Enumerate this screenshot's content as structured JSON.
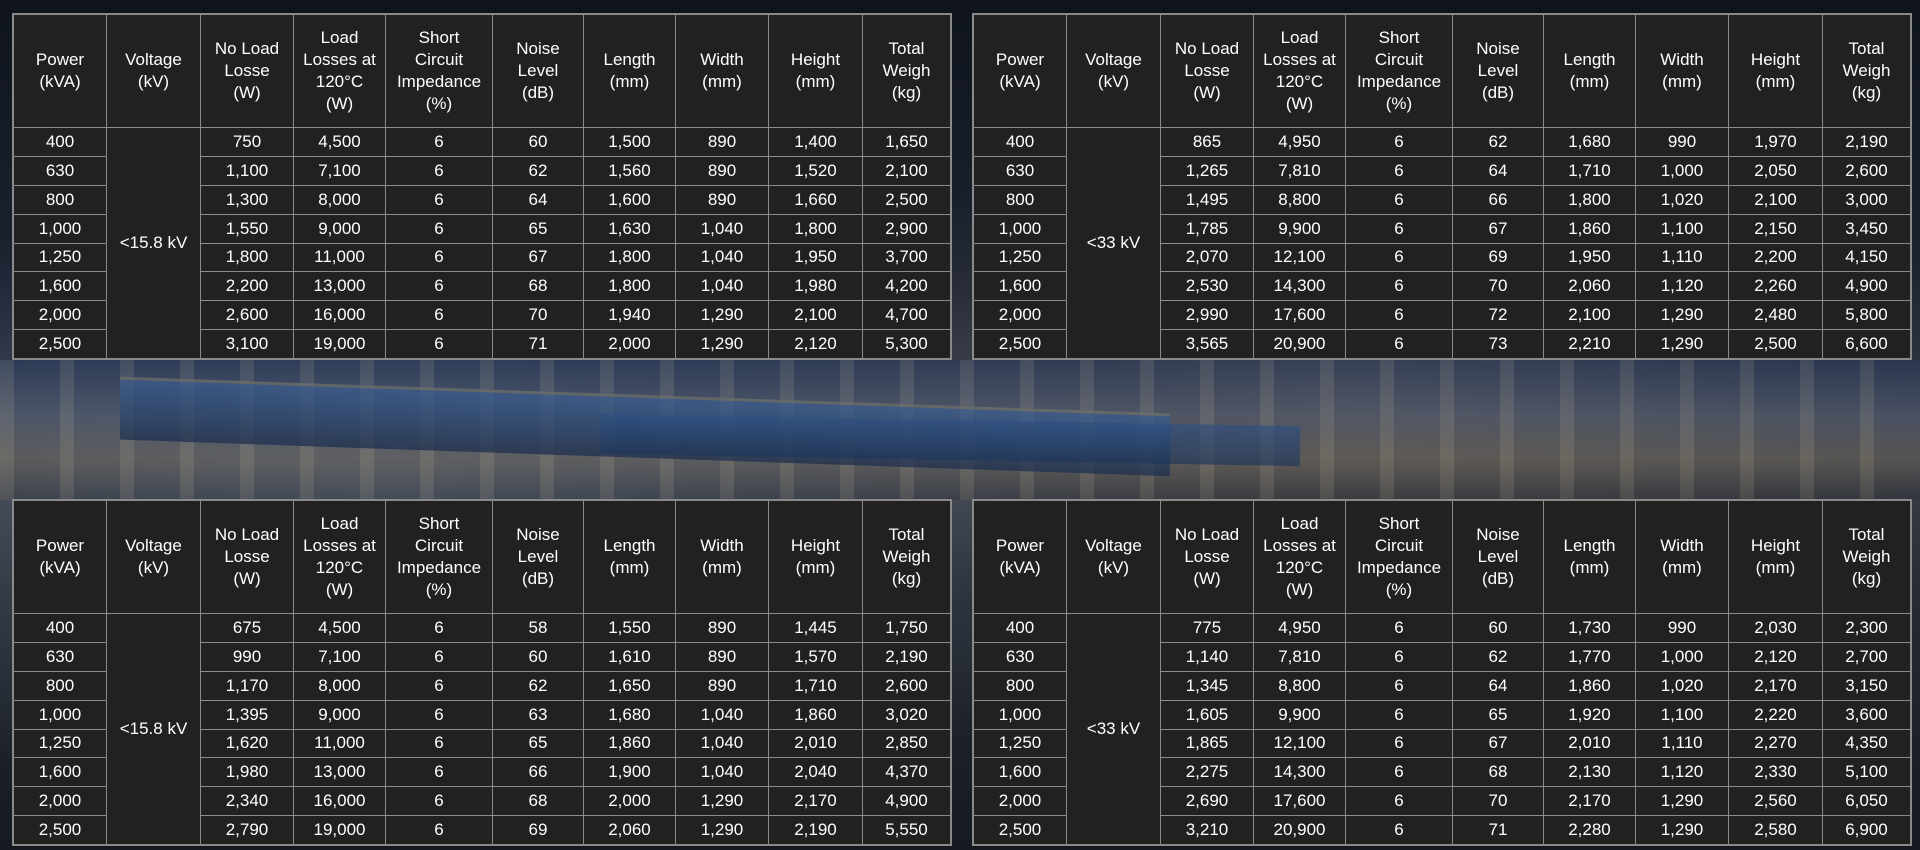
{
  "headers": [
    "Power\n(kVA)",
    "Voltage\n(kV)",
    "No Load\nLosse\n(W)",
    "Load\nLosses at\n120°C\n(W)",
    "Short\nCircuit\nImpedance\n(%)",
    "Noise\nLevel\n(dB)",
    "Length\n(mm)",
    "Width\n(mm)",
    "Height\n(mm)",
    "Total\nWeigh\n(kg)"
  ],
  "tables": [
    {
      "voltage": "<15.8 kV",
      "rows": [
        [
          "400",
          "750",
          "4,500",
          "6",
          "60",
          "1,500",
          "890",
          "1,400",
          "1,650"
        ],
        [
          "630",
          "1,100",
          "7,100",
          "6",
          "62",
          "1,560",
          "890",
          "1,520",
          "2,100"
        ],
        [
          "800",
          "1,300",
          "8,000",
          "6",
          "64",
          "1,600",
          "890",
          "1,660",
          "2,500"
        ],
        [
          "1,000",
          "1,550",
          "9,000",
          "6",
          "65",
          "1,630",
          "1,040",
          "1,800",
          "2,900"
        ],
        [
          "1,250",
          "1,800",
          "11,000",
          "6",
          "67",
          "1,800",
          "1,040",
          "1,950",
          "3,700"
        ],
        [
          "1,600",
          "2,200",
          "13,000",
          "6",
          "68",
          "1,800",
          "1,040",
          "1,980",
          "4,200"
        ],
        [
          "2,000",
          "2,600",
          "16,000",
          "6",
          "70",
          "1,940",
          "1,290",
          "2,100",
          "4,700"
        ],
        [
          "2,500",
          "3,100",
          "19,000",
          "6",
          "71",
          "2,000",
          "1,290",
          "2,120",
          "5,300"
        ]
      ]
    },
    {
      "voltage": "<33 kV",
      "rows": [
        [
          "400",
          "865",
          "4,950",
          "6",
          "62",
          "1,680",
          "990",
          "1,970",
          "2,190"
        ],
        [
          "630",
          "1,265",
          "7,810",
          "6",
          "64",
          "1,710",
          "1,000",
          "2,050",
          "2,600"
        ],
        [
          "800",
          "1,495",
          "8,800",
          "6",
          "66",
          "1,800",
          "1,020",
          "2,100",
          "3,000"
        ],
        [
          "1,000",
          "1,785",
          "9,900",
          "6",
          "67",
          "1,860",
          "1,100",
          "2,150",
          "3,450"
        ],
        [
          "1,250",
          "2,070",
          "12,100",
          "6",
          "69",
          "1,950",
          "1,110",
          "2,200",
          "4,150"
        ],
        [
          "1,600",
          "2,530",
          "14,300",
          "6",
          "70",
          "2,060",
          "1,120",
          "2,260",
          "4,900"
        ],
        [
          "2,000",
          "2,990",
          "17,600",
          "6",
          "72",
          "2,100",
          "1,290",
          "2,480",
          "5,800"
        ],
        [
          "2,500",
          "3,565",
          "20,900",
          "6",
          "73",
          "2,210",
          "1,290",
          "2,500",
          "6,600"
        ]
      ]
    },
    {
      "voltage": "<15.8 kV",
      "rows": [
        [
          "400",
          "675",
          "4,500",
          "6",
          "58",
          "1,550",
          "890",
          "1,445",
          "1,750"
        ],
        [
          "630",
          "990",
          "7,100",
          "6",
          "60",
          "1,610",
          "890",
          "1,570",
          "2,190"
        ],
        [
          "800",
          "1,170",
          "8,000",
          "6",
          "62",
          "1,650",
          "890",
          "1,710",
          "2,600"
        ],
        [
          "1,000",
          "1,395",
          "9,000",
          "6",
          "63",
          "1,680",
          "1,040",
          "1,860",
          "3,020"
        ],
        [
          "1,250",
          "1,620",
          "11,000",
          "6",
          "65",
          "1,860",
          "1,040",
          "2,010",
          "2,850"
        ],
        [
          "1,600",
          "1,980",
          "13,000",
          "6",
          "66",
          "1,900",
          "1,040",
          "2,040",
          "4,370"
        ],
        [
          "2,000",
          "2,340",
          "16,000",
          "6",
          "68",
          "2,000",
          "1,290",
          "2,170",
          "4,900"
        ],
        [
          "2,500",
          "2,790",
          "19,000",
          "6",
          "69",
          "2,060",
          "1,290",
          "2,190",
          "5,550"
        ]
      ]
    },
    {
      "voltage": "<33 kV",
      "rows": [
        [
          "400",
          "775",
          "4,950",
          "6",
          "60",
          "1,730",
          "990",
          "2,030",
          "2,300"
        ],
        [
          "630",
          "1,140",
          "7,810",
          "6",
          "62",
          "1,770",
          "1,000",
          "2,120",
          "2,700"
        ],
        [
          "800",
          "1,345",
          "8,800",
          "6",
          "64",
          "1,860",
          "1,020",
          "2,170",
          "3,150"
        ],
        [
          "1,000",
          "1,605",
          "9,900",
          "6",
          "65",
          "1,920",
          "1,100",
          "2,220",
          "3,600"
        ],
        [
          "1,250",
          "1,865",
          "12,100",
          "6",
          "67",
          "2,010",
          "1,110",
          "2,270",
          "4,350"
        ],
        [
          "1,600",
          "2,275",
          "14,300",
          "6",
          "68",
          "2,130",
          "1,120",
          "2,330",
          "5,100"
        ],
        [
          "2,000",
          "2,690",
          "17,600",
          "6",
          "70",
          "2,170",
          "1,290",
          "2,560",
          "6,050"
        ],
        [
          "2,500",
          "3,210",
          "20,900",
          "6",
          "71",
          "2,280",
          "1,290",
          "2,580",
          "6,900"
        ]
      ]
    }
  ]
}
